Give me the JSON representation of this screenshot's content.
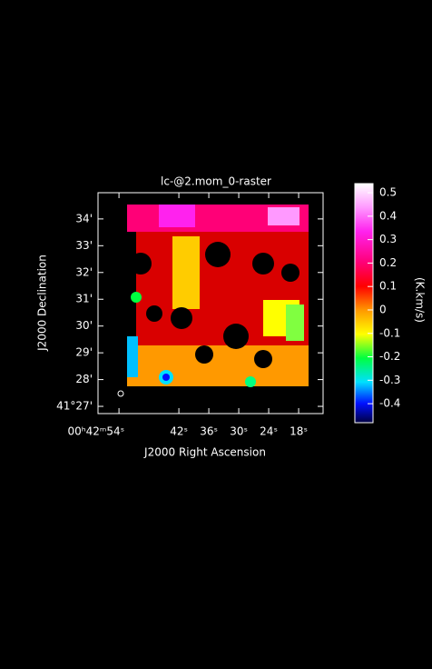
{
  "chart_data": {
    "type": "image",
    "title": "lc-@2.mom_0-raster",
    "x_label": "J2000 Right Ascension",
    "y_label": "J2000 Declination",
    "colorbar_label": "(K.km/s)",
    "xlim": [
      58.2,
      13.1
    ],
    "xticks": [
      {
        "value": 54,
        "label": "00ʰ42ᵐ54ˢ"
      },
      {
        "value": 42,
        "label": "42ˢ"
      },
      {
        "value": 36,
        "label": "36ˢ"
      },
      {
        "value": 30,
        "label": "30ˢ"
      },
      {
        "value": 24,
        "label": "24ˢ"
      },
      {
        "value": 18,
        "label": "18ˢ"
      }
    ],
    "ylim": [
      26.73,
      34.98
    ],
    "yticks": [
      {
        "value": 27,
        "label": "41°27'"
      },
      {
        "value": 28,
        "label": "28'"
      },
      {
        "value": 29,
        "label": "29'"
      },
      {
        "value": 30,
        "label": "30'"
      },
      {
        "value": 31,
        "label": "31'"
      },
      {
        "value": 32,
        "label": "32'"
      },
      {
        "value": 33,
        "label": "33'"
      },
      {
        "value": 34,
        "label": "34'"
      }
    ],
    "clim": [
      -0.481,
      0.539
    ],
    "cticks": [
      -0.4,
      -0.3,
      -0.2,
      -0.1,
      0,
      0.1,
      0.2,
      0.3,
      0.4,
      0.5
    ]
  }
}
